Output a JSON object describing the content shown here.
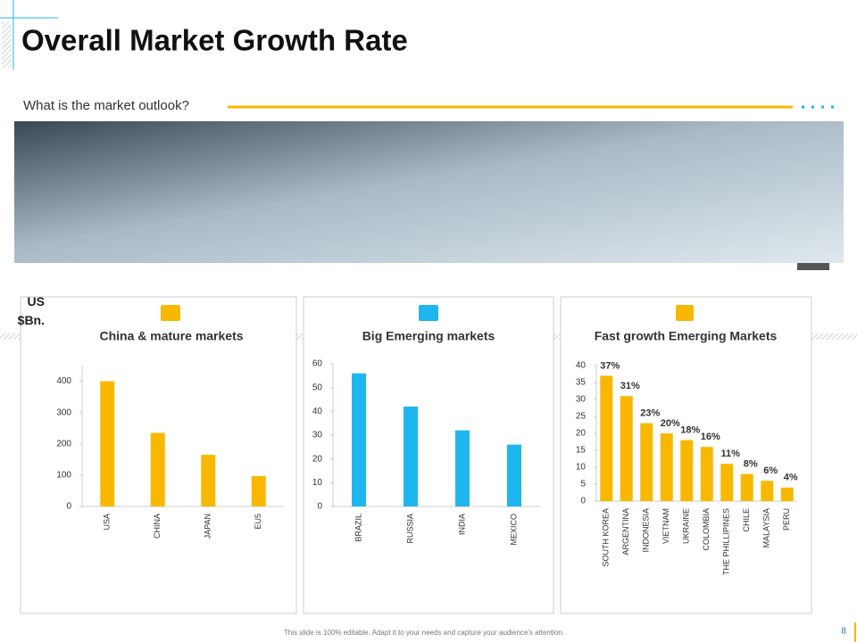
{
  "header": {
    "title": "Overall Market Growth Rate",
    "subtitle": "What is the market outlook?"
  },
  "unit_label": "US $Bn.",
  "footer": "This slide is 100% editable. Adapt it to your needs and capture your audience's attention.",
  "page_number": "8",
  "chart_data": [
    {
      "type": "bar",
      "title": "China & mature markets",
      "categories": [
        "USA",
        "CHINA",
        "JAPAN",
        "EU5"
      ],
      "values": [
        400,
        235,
        165,
        97
      ],
      "color": "#f9b800",
      "ylim": [
        0,
        450
      ],
      "yticks": [
        0,
        100,
        200,
        300,
        400
      ]
    },
    {
      "type": "bar",
      "title": "Big Emerging markets",
      "categories": [
        "BRAZIL",
        "RUSSIA",
        "INDIA",
        "MEXICO"
      ],
      "values": [
        56,
        42,
        32,
        26
      ],
      "color": "#1eb6ee",
      "ylim": [
        0,
        60
      ],
      "yticks": [
        0,
        10,
        20,
        30,
        40,
        50,
        60
      ]
    },
    {
      "type": "bar",
      "title": "Fast growth Emerging Markets",
      "categories": [
        "SOUTH KOREA",
        "ARGENTINA",
        "INDONESIA",
        "VIETNAM",
        "UKRAINE",
        "COLOMBIA",
        "THE PHILLIPINES",
        "CHILE",
        "MALAYSIA",
        "PERU"
      ],
      "values": [
        37,
        31,
        23,
        20,
        18,
        16,
        11,
        8,
        6,
        4
      ],
      "value_labels": [
        "37%",
        "31%",
        "23%",
        "20%",
        "18%",
        "16%",
        "11%",
        "8%",
        "6%",
        "4%"
      ],
      "color": "#f9b800",
      "ylim": [
        0,
        40
      ],
      "yticks": [
        0,
        5,
        10,
        15,
        20,
        25,
        30,
        35,
        40
      ]
    }
  ]
}
